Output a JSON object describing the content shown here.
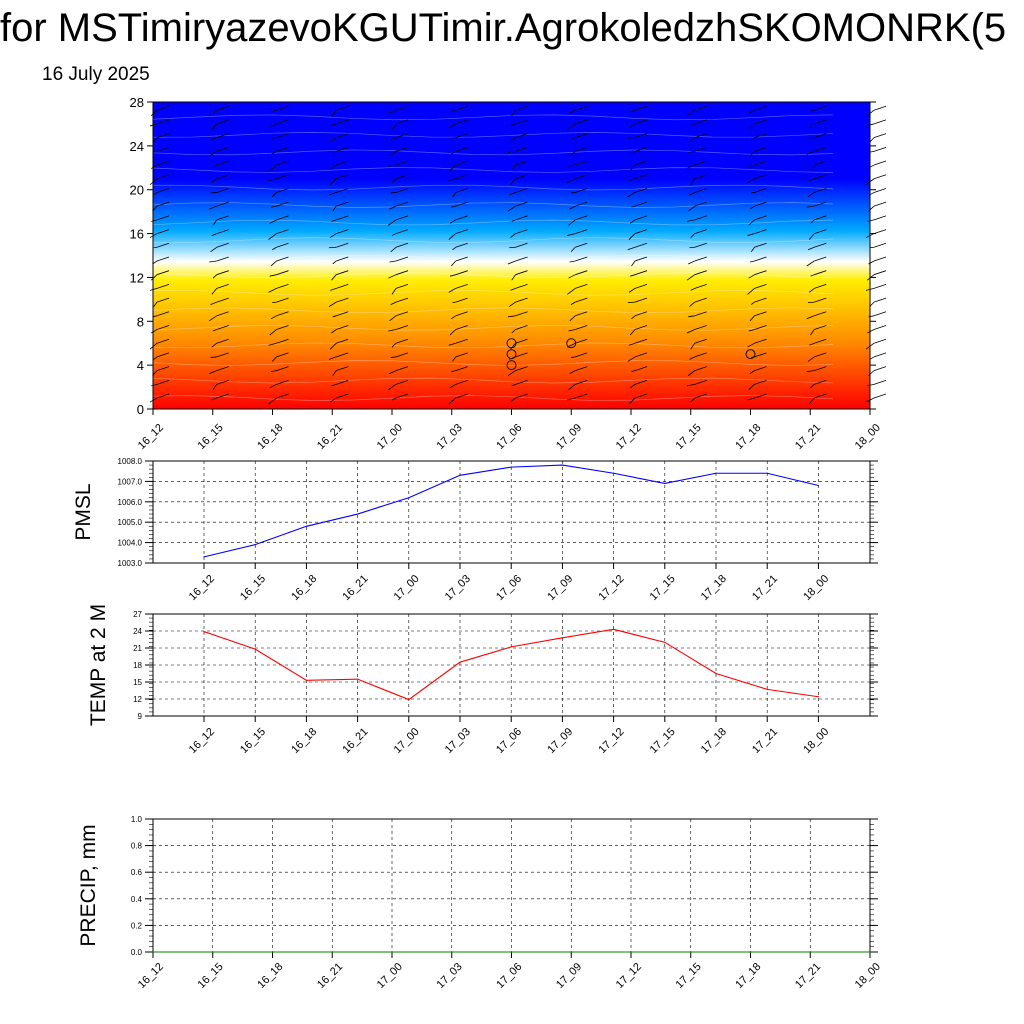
{
  "header": {
    "title": "for MSTimiryazevoKGUTimir.AgrokoledzhSKOMONRK(5",
    "date": "16 July 2025"
  },
  "colors": {
    "pmsl_line": "#0000ff",
    "temp_line": "#ff0000",
    "precip_line": "#008000",
    "grid": "#000000"
  },
  "chart_data": [
    {
      "type": "heatmap",
      "title": "",
      "xlabel": "",
      "ylabel": "",
      "categories": [
        "16_12",
        "16_15",
        "16_18",
        "16_21",
        "17_00",
        "17_03",
        "17_06",
        "17_09",
        "17_12",
        "17_15",
        "17_18",
        "17_21",
        "18_00"
      ],
      "y_ticks": [
        0,
        4,
        8,
        12,
        16,
        20,
        24,
        28
      ],
      "ylim": [
        0,
        28
      ],
      "colormap": [
        "#ff0000",
        "#ff8c00",
        "#ffee00",
        "#ffffff",
        "#00aaff",
        "#0000ff"
      ],
      "wind_barbs": "shown at every column and level",
      "calm_markers": [
        {
          "x": "17_06",
          "y": 6
        },
        {
          "x": "17_06",
          "y": 5
        },
        {
          "x": "17_06",
          "y": 4
        },
        {
          "x": "17_09",
          "y": 6
        },
        {
          "x": "17_18",
          "y": 5
        }
      ]
    },
    {
      "type": "line",
      "ylabel": "PMSL",
      "categories": [
        "16_12",
        "16_15",
        "16_18",
        "16_21",
        "17_00",
        "17_03",
        "17_06",
        "17_09",
        "17_12",
        "17_15",
        "17_18",
        "17_21",
        "18_00"
      ],
      "ylim": [
        1003.0,
        1008.0
      ],
      "y_ticks": [
        "1003.0",
        "1004.0",
        "1005.0",
        "1006.0",
        "1007.0",
        "1008.0"
      ],
      "grid": true,
      "values": [
        1003.3,
        1003.9,
        1004.8,
        1005.4,
        1006.2,
        1007.3,
        1007.7,
        1007.8,
        1007.4,
        1006.9,
        1007.4,
        1007.4,
        1006.8
      ]
    },
    {
      "type": "line",
      "ylabel": "TEMP at 2 M",
      "categories": [
        "16_12",
        "16_15",
        "16_18",
        "16_21",
        "17_00",
        "17_03",
        "17_06",
        "17_09",
        "17_12",
        "17_15",
        "17_18",
        "17_21",
        "18_00"
      ],
      "ylim": [
        9,
        27
      ],
      "y_ticks": [
        "9",
        "12",
        "15",
        "18",
        "21",
        "24",
        "27"
      ],
      "grid": true,
      "values": [
        23.9,
        20.8,
        15.3,
        15.5,
        11.9,
        18.5,
        21.2,
        22.8,
        24.3,
        22.0,
        16.5,
        13.7,
        12.4
      ]
    },
    {
      "type": "line",
      "ylabel": "PRECIP, mm",
      "categories": [
        "16_12",
        "16_15",
        "16_18",
        "16_21",
        "17_00",
        "17_03",
        "17_06",
        "17_09",
        "17_12",
        "17_15",
        "17_18",
        "17_21",
        "18_00"
      ],
      "ylim": [
        0.0,
        1.0
      ],
      "y_ticks": [
        "0.0",
        "0.2",
        "0.4",
        "0.6",
        "0.8",
        "1.0"
      ],
      "grid": true,
      "values": [
        0,
        0,
        0,
        0,
        0,
        0,
        0,
        0,
        0,
        0,
        0,
        0,
        0
      ]
    }
  ]
}
